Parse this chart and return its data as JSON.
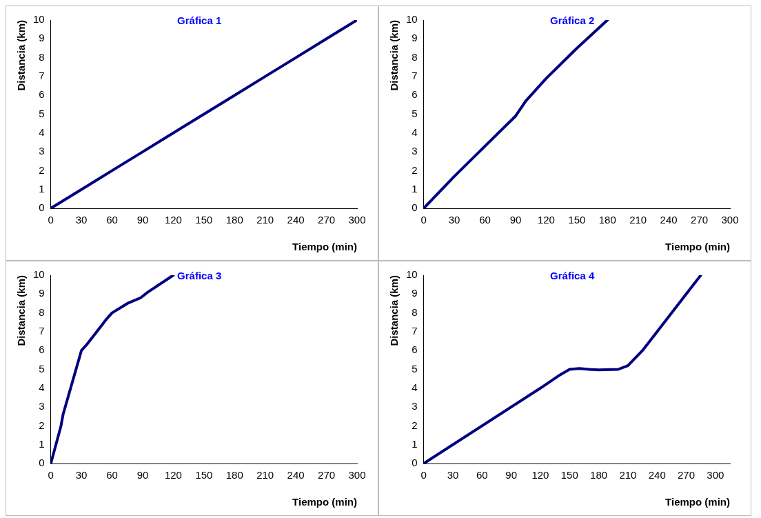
{
  "chart_data": [
    {
      "type": "line",
      "title": "Gráfica 1",
      "xlabel": "Tiempo (min)",
      "ylabel": "Distancia (km)",
      "x": [
        0,
        30,
        60,
        90,
        120,
        150,
        180,
        210,
        240,
        270,
        300
      ],
      "series": [
        {
          "color": "#000080",
          "values": [
            0,
            1,
            2,
            3,
            4,
            5,
            6,
            7,
            8,
            9,
            10
          ]
        }
      ],
      "xlim": [
        0,
        300
      ],
      "ylim": [
        0,
        10
      ],
      "xticks": [
        0,
        30,
        60,
        90,
        120,
        150,
        180,
        210,
        240,
        270,
        300
      ],
      "yticks": [
        0,
        1,
        2,
        3,
        4,
        5,
        6,
        7,
        8,
        9,
        10
      ],
      "grid": false,
      "legend": false,
      "marker": "none",
      "line_style": "solid"
    },
    {
      "type": "line",
      "title": "Gráfica 2",
      "xlabel": "Tiempo (min)",
      "ylabel": "Distancia (km)",
      "x": [
        0,
        30,
        60,
        90,
        100,
        120,
        150,
        180
      ],
      "series": [
        {
          "color": "#000080",
          "values": [
            0,
            1.7,
            3.3,
            4.9,
            5.7,
            6.9,
            8.5,
            10
          ]
        }
      ],
      "xlim": [
        0,
        300
      ],
      "ylim": [
        0,
        10
      ],
      "xticks": [
        0,
        30,
        60,
        90,
        120,
        150,
        180,
        210,
        240,
        270,
        300
      ],
      "yticks": [
        0,
        1,
        2,
        3,
        4,
        5,
        6,
        7,
        8,
        9,
        10
      ],
      "grid": false,
      "legend": false,
      "marker": "none",
      "line_style": "solid"
    },
    {
      "type": "line",
      "title": "Gráfica 3",
      "xlabel": "Tiempo (min)",
      "ylabel": "Distancia (km)",
      "x": [
        0,
        10,
        12,
        30,
        35,
        45,
        55,
        60,
        75,
        88,
        95,
        120
      ],
      "series": [
        {
          "color": "#000080",
          "values": [
            0,
            2,
            2.6,
            6,
            6.3,
            7,
            7.7,
            8,
            8.5,
            8.8,
            9.1,
            10
          ]
        }
      ],
      "xlim": [
        0,
        300
      ],
      "ylim": [
        0,
        10
      ],
      "xticks": [
        0,
        30,
        60,
        90,
        120,
        150,
        180,
        210,
        240,
        270,
        300
      ],
      "yticks": [
        0,
        1,
        2,
        3,
        4,
        5,
        6,
        7,
        8,
        9,
        10
      ],
      "grid": false,
      "legend": false,
      "marker": "none",
      "line_style": "solid"
    },
    {
      "type": "line",
      "title": "Gráfica 4",
      "xlabel": "Tiempo (min)",
      "ylabel": "Distancia (km)",
      "x": [
        0,
        120,
        140,
        150,
        160,
        170,
        180,
        200,
        210,
        225,
        240,
        270,
        285
      ],
      "series": [
        {
          "color": "#000080",
          "values": [
            0,
            4,
            4.7,
            5,
            5.05,
            5,
            4.97,
            5,
            5.2,
            6,
            7,
            9,
            10
          ]
        }
      ],
      "xlim": [
        0,
        315
      ],
      "ylim": [
        0,
        10
      ],
      "xticks": [
        0,
        30,
        60,
        90,
        120,
        150,
        180,
        210,
        240,
        270,
        300
      ],
      "yticks": [
        0,
        1,
        2,
        3,
        4,
        5,
        6,
        7,
        8,
        9,
        10
      ],
      "grid": false,
      "legend": false,
      "marker": "none",
      "line_style": "solid"
    }
  ]
}
